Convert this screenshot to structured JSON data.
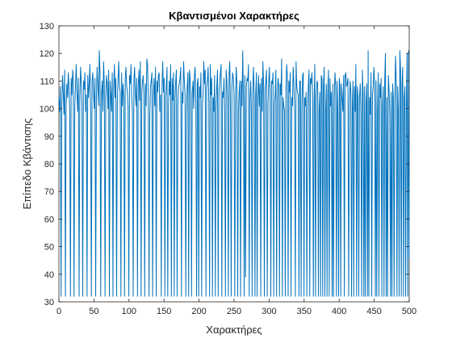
{
  "chart_data": {
    "type": "line",
    "title": "Κβαντισμένοι Χαρακτήρες",
    "xlabel": "Χαρακτήρες",
    "ylabel": "Επίπεδο Κβάντισης",
    "xlim": [
      0,
      500
    ],
    "ylim": [
      30,
      130
    ],
    "xticks": [
      0,
      50,
      100,
      150,
      200,
      250,
      300,
      350,
      400,
      450,
      500
    ],
    "yticks": [
      30,
      40,
      50,
      60,
      70,
      80,
      90,
      100,
      110,
      120,
      130
    ],
    "grid": false,
    "legend": "none",
    "line_color": "#0072BD",
    "series": [
      {
        "values": [
          104,
          99,
          108,
          32,
          102,
          112,
          106,
          98,
          114,
          32,
          101,
          109,
          104,
          113,
          108,
          99,
          32,
          111,
          105,
          114,
          110,
          32,
          101,
          108,
          116,
          106,
          99,
          111,
          32,
          104,
          115,
          109,
          101,
          32,
          110,
          107,
          113,
          99,
          105,
          32,
          112,
          104,
          109,
          116,
          98,
          32,
          110,
          113,
          106,
          100,
          111,
          32,
          104,
          115,
          108,
          101,
          121,
          113,
          32,
          105,
          110,
          99,
          117,
          108,
          32,
          104,
          112,
          109,
          100,
          114,
          32,
          110,
          105,
          99,
          113,
          32,
          108,
          116,
          104,
          111,
          32,
          102,
          110,
          117,
          108,
          106,
          32,
          113,
          101,
          109,
          104,
          32,
          111,
          115,
          108,
          106,
          100,
          32,
          112,
          109,
          116,
          104,
          99,
          32,
          110,
          115,
          105,
          101,
          111,
          32,
          108,
          114,
          103,
          117,
          32,
          106,
          110,
          112,
          105,
          32,
          109,
          101,
          118,
          116,
          104,
          32,
          97,
          108,
          110,
          113,
          32,
          104,
          111,
          101,
          115,
          32,
          110,
          106,
          112,
          113,
          99,
          105,
          32,
          108,
          117,
          106,
          111,
          32,
          104,
          109,
          115,
          32,
          100,
          110,
          105,
          116,
          32,
          111,
          103,
          113,
          32,
          104,
          110,
          114,
          32,
          101,
          108,
          109,
          111,
          115,
          32,
          106,
          102,
          117,
          110,
          105,
          32,
          99,
          108,
          113,
          32,
          114,
          111,
          104,
          32,
          106,
          110,
          100,
          112,
          115,
          101,
          32,
          109,
          111,
          32,
          108,
          104,
          113,
          32,
          100,
          106,
          117,
          109,
          114,
          32,
          108,
          110,
          115,
          102,
          32,
          116,
          105,
          111,
          32,
          104,
          99,
          112,
          32,
          101,
          108,
          114,
          32,
          106,
          109,
          113,
          116,
          32,
          106,
          104,
          111,
          98,
          32,
          114,
          110,
          104,
          32,
          112,
          117,
          101,
          32,
          108,
          113,
          111,
          105,
          32,
          104,
          115,
          109,
          32,
          99,
          106,
          110,
          32,
          110,
          101,
          121,
          104,
          32,
          112,
          39,
          108,
          111,
          110,
          116,
          32,
          104,
          110,
          100,
          32,
          108,
          115,
          103,
          32,
          105,
          113,
          32,
          104,
          112,
          101,
          109,
          32,
          111,
          99,
          117,
          108,
          32,
          106,
          110,
          114,
          32,
          100,
          109,
          115,
          104,
          32,
          110,
          109,
          113,
          32,
          102,
          105,
          114,
          32,
          104,
          111,
          108,
          32,
          109,
          105,
          118,
          32,
          104,
          101,
          99,
          32,
          108,
          116,
          111,
          32,
          110,
          106,
          113,
          32,
          104,
          101,
          115,
          109,
          99,
          32,
          117,
          108,
          106,
          105,
          32,
          110,
          110,
          32,
          99,
          112,
          113,
          32,
          104,
          101,
          106,
          32,
          99,
          108,
          114,
          32,
          111,
          109,
          113,
          105,
          32,
          101,
          116,
          32,
          104,
          110,
          109,
          32,
          100,
          106,
          32,
          112,
          111,
          32,
          108,
          115,
          32,
          99,
          109,
          32,
          106,
          114,
          32,
          111,
          101,
          106,
          32,
          109,
          32,
          104,
          113,
          108,
          32,
          110,
          99,
          32,
          111,
          108,
          32,
          109,
          104,
          99,
          112,
          32,
          112,
          113,
          108,
          109,
          111,
          32,
          101,
          110,
          106,
          32,
          100,
          110,
          32,
          108,
          99,
          116,
          32,
          108,
          104,
          32,
          104,
          109,
          99,
          32,
          114,
          105,
          32,
          108,
          32,
          102,
          109,
          32,
          121,
          32,
          104,
          98,
          113,
          32,
          105,
          108,
          115,
          109,
          32,
          110,
          32,
          99,
          113,
          32,
          109,
          104,
          111,
          32,
          101,
          108,
          32,
          110,
          120,
          32,
          104,
          32,
          112,
          107,
          99,
          32,
          106,
          32,
          109,
          104,
          32,
          102,
          119,
          110,
          32,
          108,
          99,
          32,
          121,
          114,
          32,
          109,
          115,
          32,
          104,
          108,
          32,
          100,
          120,
          32,
          121,
          46
        ]
      }
    ]
  }
}
